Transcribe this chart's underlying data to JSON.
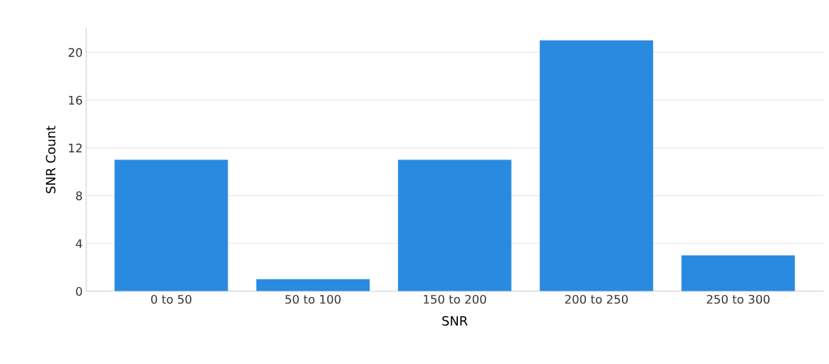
{
  "chart_data": {
    "type": "bar",
    "xlabel": "SNR",
    "ylabel": "SNR Count",
    "categories": [
      "0 to 50",
      "50 to 100",
      "150 to 200",
      "200 to 250",
      "250 to 300"
    ],
    "values": [
      11,
      1,
      11,
      21,
      3
    ],
    "color": "#2a8ae0",
    "ylim": [
      0,
      22
    ],
    "yticks": [
      0,
      4,
      8,
      12,
      16,
      20
    ],
    "grid": "y",
    "legend": false
  }
}
